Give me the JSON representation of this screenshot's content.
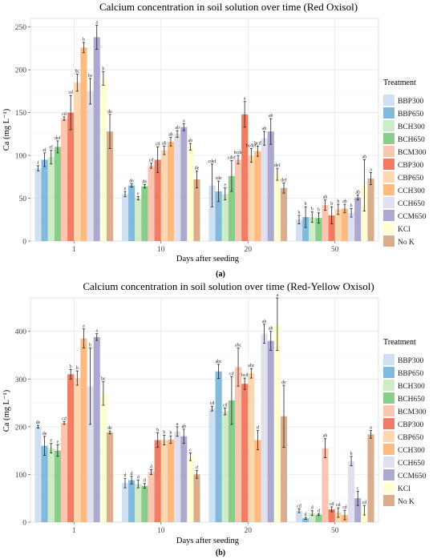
{
  "figure": {
    "legend_title": "Treatment",
    "treatments": [
      "BBP300",
      "BBP650",
      "BCH300",
      "BCH650",
      "BCM300",
      "CBP300",
      "CBP650",
      "CCH300",
      "CCH650",
      "CCM650",
      "KCl",
      "No K"
    ],
    "colors": [
      "#c6dbef",
      "#6baed6",
      "#c7e9c0",
      "#74c476",
      "#fcbba1",
      "#ef6548",
      "#fdd0a2",
      "#fdae6b",
      "#dadaeb",
      "#9e9ac8",
      "#ffffcc",
      "#d4a078"
    ]
  },
  "chart_data": [
    {
      "type": "bar",
      "title": "Calcium concentration in soil solution over time (Red Oxisol)",
      "xlabel": "Days after seeding",
      "ylabel": "Ca (mg L⁻¹)",
      "panel_label": "(a)",
      "categories": [
        "1",
        "10",
        "20",
        "50"
      ],
      "ylim": [
        0,
        260
      ],
      "yticks": [
        0,
        50,
        100,
        150,
        200,
        250
      ],
      "grid": true,
      "legend": "right",
      "series": [
        {
          "name": "BBP300",
          "values": [
            85,
            55,
            65,
            25
          ],
          "errors": [
            3,
            3,
            25,
            5
          ],
          "letters": [
            "f",
            "e",
            "cdef",
            "b"
          ]
        },
        {
          "name": "BBP650",
          "values": [
            95,
            65,
            58,
            28
          ],
          "errors": [
            8,
            2,
            12,
            12
          ],
          "letters": [
            "ef",
            "de",
            "cde",
            "b"
          ]
        },
        {
          "name": "BCH300",
          "values": [
            98,
            50,
            55,
            28
          ],
          "errors": [
            8,
            2,
            7,
            6
          ],
          "letters": [
            "ef",
            "e",
            "e",
            "b"
          ]
        },
        {
          "name": "BCH650",
          "values": [
            110,
            64,
            76,
            27
          ],
          "errors": [
            7,
            2,
            18,
            6
          ],
          "letters": [
            "def",
            "de",
            "cdef",
            "b"
          ]
        },
        {
          "name": "BCM300",
          "values": [
            143,
            88,
            95,
            42
          ],
          "errors": [
            2,
            3,
            5,
            6
          ],
          "letters": [
            "cd",
            "cd",
            "bcde",
            "ab"
          ]
        },
        {
          "name": "CBP300",
          "values": [
            150,
            95,
            148,
            30
          ],
          "errors": [
            20,
            15,
            15,
            10
          ],
          "letters": [
            "cd",
            "cd",
            "a",
            "b"
          ]
        },
        {
          "name": "CBP650",
          "values": [
            185,
            106,
            100,
            37
          ],
          "errors": [
            10,
            5,
            8,
            6
          ],
          "letters": [
            "bc",
            "ab",
            "bcdef",
            "b"
          ]
        },
        {
          "name": "CCH300",
          "values": [
            226,
            116,
            105,
            38
          ],
          "errors": [
            6,
            5,
            6,
            5
          ],
          "letters": [
            "b",
            "ab",
            "bcd",
            "ab"
          ]
        },
        {
          "name": "CCH650",
          "values": [
            175,
            125,
            120,
            33
          ],
          "errors": [
            15,
            4,
            8,
            5
          ],
          "letters": [
            "bc",
            "ab",
            "ab",
            "b"
          ]
        },
        {
          "name": "CCM650",
          "values": [
            238,
            133,
            128,
            51
          ],
          "errors": [
            14,
            4,
            15,
            3
          ],
          "letters": [
            "a",
            "a",
            "ab",
            "ab"
          ]
        },
        {
          "name": "KCl",
          "values": [
            190,
            110,
            78,
            65
          ],
          "errors": [
            8,
            4,
            7,
            30
          ],
          "letters": [
            "b",
            "ab",
            "def",
            "ab"
          ]
        },
        {
          "name": "No K",
          "values": [
            128,
            72,
            62,
            73
          ],
          "errors": [
            20,
            10,
            6,
            7
          ],
          "letters": [
            "de",
            "de",
            "def",
            "a"
          ]
        }
      ]
    },
    {
      "type": "bar",
      "title": "Calcium concentration in soil solution over time (Red-Yellow Oxisol)",
      "xlabel": "Days after seeding",
      "ylabel": "Ca (mg L⁻¹)",
      "panel_label": "(b)",
      "categories": [
        "1",
        "10",
        "20",
        "50"
      ],
      "ylim": [
        0,
        470
      ],
      "yticks": [
        0,
        100,
        200,
        300,
        400
      ],
      "grid": true,
      "legend": "right",
      "series": [
        {
          "name": "BBP300",
          "values": [
            200,
            82,
            238,
            24
          ],
          "errors": [
            3,
            10,
            5,
            4
          ],
          "letters": [
            "de",
            "d",
            "cd",
            "cd"
          ]
        },
        {
          "name": "BBP650",
          "values": [
            160,
            88,
            316,
            8
          ],
          "errors": [
            20,
            8,
            15,
            2
          ],
          "letters": [
            "de",
            "d",
            "abc",
            "d"
          ]
        },
        {
          "name": "BCH300",
          "values": [
            155,
            80,
            232,
            19
          ],
          "errors": [
            10,
            8,
            7,
            5
          ],
          "letters": [
            "e",
            "d",
            "cd",
            "d"
          ]
        },
        {
          "name": "BCH650",
          "values": [
            150,
            76,
            255,
            16
          ],
          "errors": [
            12,
            5,
            50,
            2
          ],
          "letters": [
            "e",
            "d",
            "cd",
            "d"
          ]
        },
        {
          "name": "BCM300",
          "values": [
            208,
            105,
            325,
            155
          ],
          "errors": [
            3,
            5,
            40,
            20
          ],
          "letters": [
            "cd",
            "d",
            "abc",
            "ab"
          ]
        },
        {
          "name": "CBP300",
          "values": [
            310,
            172,
            290,
            27
          ],
          "errors": [
            10,
            15,
            12,
            5
          ],
          "letters": [
            "b",
            "b",
            "bcd",
            "cd"
          ]
        },
        {
          "name": "CBP650",
          "values": [
            302,
            172,
            312,
            20
          ],
          "errors": [
            15,
            10,
            10,
            10
          ],
          "letters": [
            "b",
            "b",
            "abc",
            "cd"
          ]
        },
        {
          "name": "CCH300",
          "values": [
            385,
            173,
            172,
            15
          ],
          "errors": [
            20,
            8,
            20,
            10
          ],
          "letters": [
            "a",
            "b",
            "d",
            "cd"
          ]
        },
        {
          "name": "CCH650",
          "values": [
            285,
            190,
            395,
            128
          ],
          "errors": [
            80,
            10,
            20,
            10
          ],
          "letters": [
            "b",
            "a",
            "ab",
            "b"
          ]
        },
        {
          "name": "CCM650",
          "values": [
            388,
            180,
            380,
            50
          ],
          "errors": [
            7,
            15,
            20,
            15
          ],
          "letters": [
            "a",
            "ab",
            "ab",
            "c"
          ]
        },
        {
          "name": "KCl",
          "values": [
            270,
            137,
            415,
            25
          ],
          "errors": [
            25,
            8,
            55,
            10
          ],
          "letters": [
            "bc",
            "c",
            "a",
            "cd"
          ]
        },
        {
          "name": "No K",
          "values": [
            188,
            100,
            222,
            184
          ],
          "errors": [
            3,
            8,
            65,
            8
          ],
          "letters": [
            "de",
            "d",
            "de",
            "a"
          ]
        }
      ]
    }
  ]
}
